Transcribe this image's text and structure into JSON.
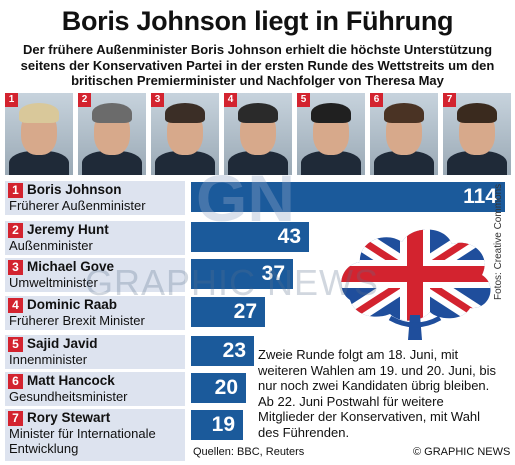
{
  "title": "Boris Johnson liegt in Führung",
  "subtitle": "Der frühere Außenminister Boris Johnson erhielt die höchste Unterstützung seitens der Konservativen Partei in der ersten Runde des Wettstreits um den britischen Premierminister und Nachfolger von Theresa May",
  "photos": [
    {
      "num": "1"
    },
    {
      "num": "2"
    },
    {
      "num": "3"
    },
    {
      "num": "4"
    },
    {
      "num": "5"
    },
    {
      "num": "6"
    },
    {
      "num": "7"
    }
  ],
  "candidates": [
    {
      "rank": "1",
      "name": "Boris Johnson",
      "role": "Früherer Außenminister",
      "votes": 114
    },
    {
      "rank": "2",
      "name": "Jeremy Hunt",
      "role": "Außenminister",
      "votes": 43
    },
    {
      "rank": "3",
      "name": "Michael Gove",
      "role": "Umweltminister",
      "votes": 37
    },
    {
      "rank": "4",
      "name": "Dominic Raab",
      "role": "Früherer Brexit Minister",
      "votes": 27
    },
    {
      "rank": "5",
      "name": "Sajid Javid",
      "role": "Innenminister",
      "votes": 23
    },
    {
      "rank": "6",
      "name": "Matt Hancock",
      "role": "Gesundheitsminister",
      "votes": 20
    },
    {
      "rank": "7",
      "name": "Rory Stewart",
      "role": "Minister für Internationale Entwicklung",
      "votes": 19
    }
  ],
  "chart_data": {
    "type": "bar",
    "title": "Boris Johnson liegt in Führung",
    "categories": [
      "Boris Johnson",
      "Jeremy Hunt",
      "Michael Gove",
      "Dominic Raab",
      "Sajid Javid",
      "Matt Hancock",
      "Rory Stewart"
    ],
    "values": [
      114,
      43,
      37,
      27,
      23,
      20,
      19
    ],
    "orientation": "horizontal",
    "xlim": [
      0,
      114
    ]
  },
  "note": "Zweie Runde folgt am 18. Juni, mit weiteren Wahlen am 19. und 20. Juni, bis nur noch zwei Kandidaten übrig bleiben. Ab 22. Juni Postwahl für weitere Mitglieder der Konservativen, mit Wahl des Führenden.",
  "source": "Quellen: BBC, Reuters",
  "copyright": "© GRAPHIC NEWS",
  "photo_credit": "Fotos: Creative Commons",
  "watermark": "GRAPHIC NEWS",
  "watermark_short": "GN",
  "colors": {
    "bar": "#1b5a9b",
    "badge": "#d3232f",
    "label_bg": "#dde3ef",
    "logo_blue": "#1f4e9c",
    "logo_red": "#d3232f"
  }
}
